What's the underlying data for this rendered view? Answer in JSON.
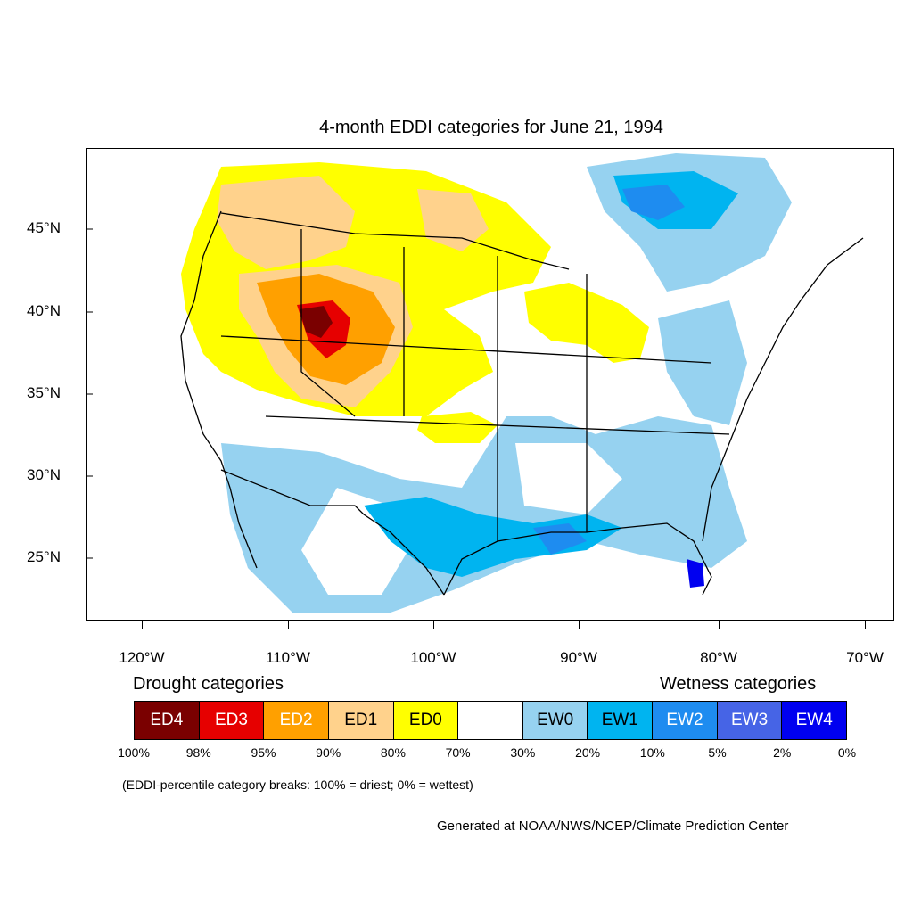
{
  "title": "4-month EDDI categories for June 21, 1994",
  "lat_labels": [
    "45°N",
    "40°N",
    "35°N",
    "30°N",
    "25°N"
  ],
  "lon_labels": [
    "120°W",
    "110°W",
    "100°W",
    "90°W",
    "80°W",
    "70°W"
  ],
  "legend": {
    "drought_heading": "Drought categories",
    "wetness_heading": "Wetness categories",
    "categories": [
      {
        "label": "ED4",
        "color": "#7a0000",
        "text_color": "#ffffff"
      },
      {
        "label": "ED3",
        "color": "#e60000",
        "text_color": "#ffffff"
      },
      {
        "label": "ED2",
        "color": "#ffa000",
        "text_color": "#ffffff"
      },
      {
        "label": "ED1",
        "color": "#ffd28c",
        "text_color": "#000000"
      },
      {
        "label": "ED0",
        "color": "#ffff00",
        "text_color": "#000000"
      },
      {
        "label": "",
        "color": "#ffffff",
        "text_color": "#000000"
      },
      {
        "label": "EW0",
        "color": "#96d2f0",
        "text_color": "#000000"
      },
      {
        "label": "EW1",
        "color": "#00b4f0",
        "text_color": "#000000"
      },
      {
        "label": "EW2",
        "color": "#1e8cf0",
        "text_color": "#ffffff"
      },
      {
        "label": "EW3",
        "color": "#4664e6",
        "text_color": "#ffffff"
      },
      {
        "label": "EW4",
        "color": "#0000f0",
        "text_color": "#ffffff"
      }
    ],
    "percentiles": [
      "100%",
      "98%",
      "95%",
      "90%",
      "80%",
      "70%",
      "30%",
      "20%",
      "10%",
      "5%",
      "2%",
      "0%"
    ]
  },
  "note": "(EDDI-percentile category breaks: 100% = driest; 0% = wettest)",
  "credit": "Generated at NOAA/NWS/NCEP/Climate Prediction Center"
}
